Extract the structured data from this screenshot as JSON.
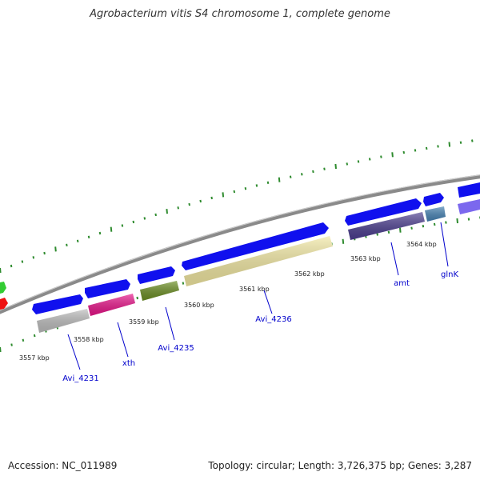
{
  "title": "Agrobacterium vitis S4 chromosome 1, complete genome",
  "footer": {
    "accession": "Accession: NC_011989",
    "summary": "Topology: circular; Length: 3,726,375 bp; Genes: 3,287"
  },
  "map": {
    "backbone_color": "#8a8a8a",
    "tick_color": "#2e8b2e",
    "label_color": "#0000cc",
    "tick_labels": [
      "3557 kbp",
      "3558 kbp",
      "3559 kbp",
      "3560 kbp",
      "3561 kbp",
      "3562 kbp",
      "3563 kbp",
      "3564 kbp"
    ],
    "gene_labels": [
      "Avi_4231",
      "xth",
      "Avi_4235",
      "Avi_4236",
      "amt",
      "glnK"
    ],
    "features": [
      {
        "name": "cds-strand",
        "color": "#1010ee"
      },
      {
        "name": "gene-grey",
        "color": "#bdbdbd"
      },
      {
        "name": "gene-xth",
        "color": "#e8158a"
      },
      {
        "name": "gene-olive",
        "color": "#6b8e23"
      },
      {
        "name": "gene-cream",
        "color": "#f2e8a2"
      },
      {
        "name": "gene-amt",
        "color": "#4b3d8f"
      },
      {
        "name": "gene-glnk",
        "color": "#4682b4"
      },
      {
        "name": "gene-lavender",
        "color": "#7b68ee"
      },
      {
        "name": "gene-green",
        "color": "#33cc33"
      },
      {
        "name": "gene-red",
        "color": "#ee1111"
      }
    ]
  }
}
